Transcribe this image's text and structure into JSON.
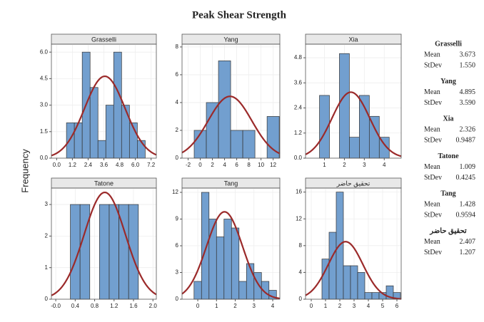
{
  "title": "Peak Shear Strength",
  "y_label": "Frequency",
  "chart_data": [
    {
      "type": "histogram",
      "title": "Grasselli",
      "color": "#729fcf",
      "curve_color": "#9b2a2a",
      "grid": true,
      "bins": [
        0.75,
        1.35,
        1.95,
        2.55,
        3.15,
        3.75,
        4.35,
        4.95,
        5.55,
        6.15,
        6.75
      ],
      "counts": [
        2,
        2,
        6,
        4,
        1,
        3,
        6,
        3,
        2,
        1
      ],
      "xlim": [
        -0.4,
        7.6
      ],
      "ylim": [
        0,
        6.45
      ],
      "xticks": [
        {
          "value": 0,
          "label": "0.0"
        },
        1.2,
        2.4,
        3.6,
        4.8,
        {
          "value": 6,
          "label": "6.0"
        },
        7.2
      ],
      "yticks": [
        {
          "value": 0,
          "label": "0.0"
        },
        1.5,
        {
          "value": 3,
          "label": "3.0"
        },
        4.5,
        {
          "value": 6,
          "label": "6.0"
        }
      ],
      "stats": [
        {
          "label": "Mean",
          "value": 3.673
        },
        {
          "label": "StDev",
          "value": {
            "value": 1.55,
            "label": "1.550"
          }
        }
      ]
    },
    {
      "type": "histogram",
      "title": "Yang",
      "color": "#729fcf",
      "curve_color": "#9b2a2a",
      "grid": true,
      "bins": [
        -1,
        1,
        3,
        5,
        7,
        9,
        11,
        13
      ],
      "counts": [
        2,
        4,
        7,
        2,
        2,
        0,
        3
      ],
      "xlim": [
        -3,
        13.1
      ],
      "ylim": [
        0,
        8.2
      ],
      "xticks": [
        -2,
        0,
        2,
        4,
        6,
        8,
        10,
        12
      ],
      "yticks": [
        0,
        2,
        4,
        6,
        8
      ],
      "stats": [
        {
          "label": "Mean",
          "value": 4.895
        },
        {
          "label": "StDev",
          "value": {
            "value": 3.59,
            "label": "3.590"
          }
        }
      ]
    },
    {
      "type": "histogram",
      "title": "Xia",
      "color": "#729fcf",
      "curve_color": "#9b2a2a",
      "grid": true,
      "bins": [
        0.75,
        1.25,
        1.75,
        2.25,
        2.75,
        3.25,
        3.75,
        4.25
      ],
      "counts": [
        3,
        0,
        5,
        1,
        3,
        2,
        1
      ],
      "xlim": [
        0.05,
        4.85
      ],
      "ylim": [
        0,
        5.45
      ],
      "xticks": [
        1,
        2,
        3,
        4
      ],
      "yticks": [
        {
          "value": 0,
          "label": "0.0"
        },
        1.2,
        2.4,
        3.6,
        4.8
      ],
      "stats": [
        {
          "label": "Mean",
          "value": 2.326
        },
        {
          "label": "StDev",
          "value": 0.9487
        }
      ]
    },
    {
      "type": "histogram",
      "title": "Tatone",
      "color": "#729fcf",
      "curve_color": "#9b2a2a",
      "grid": true,
      "bins": [
        0.3,
        0.5,
        0.7,
        0.9,
        1.1,
        1.3,
        1.5,
        1.7
      ],
      "counts": [
        3,
        3,
        0,
        3,
        3,
        3,
        3
      ],
      "xlim": [
        -0.09,
        2.07
      ],
      "ylim": [
        0,
        3.52
      ],
      "xticks": [
        {
          "value": 0,
          "label": "-0.0"
        },
        0.4,
        0.8,
        1.2,
        1.6,
        {
          "value": 2,
          "label": "2.0"
        }
      ],
      "yticks": [
        0,
        1,
        2,
        3
      ],
      "stats": [
        {
          "label": "Mean",
          "value": 1.009
        },
        {
          "label": "StDev",
          "value": 0.4245
        }
      ]
    },
    {
      "type": "histogram",
      "title": "Tang",
      "color": "#729fcf",
      "curve_color": "#9b2a2a",
      "grid": true,
      "bins": [
        -0.2,
        0.2,
        0.6,
        1.0,
        1.4,
        1.8,
        2.2,
        2.6,
        3.0,
        3.4,
        3.8,
        4.2
      ],
      "counts": [
        2,
        12,
        9,
        7,
        9,
        8,
        2,
        4,
        3,
        2,
        1
      ],
      "xlim": [
        -0.84,
        4.38
      ],
      "ylim": [
        0,
        12.48
      ],
      "xticks": [
        0,
        1,
        2,
        3,
        4
      ],
      "yticks": [
        0,
        3,
        6,
        9,
        12
      ],
      "stats": [
        {
          "label": "Mean",
          "value": 1.428
        },
        {
          "label": "StDev",
          "value": 0.9594
        }
      ]
    },
    {
      "type": "histogram",
      "title": "تحقيق حاضر",
      "color": "#729fcf",
      "curve_color": "#9b2a2a",
      "grid": true,
      "bins": [
        0.75,
        1.25,
        1.75,
        2.25,
        2.75,
        3.25,
        3.75,
        4.25,
        4.75,
        5.25,
        5.75,
        6.25
      ],
      "counts": [
        6,
        10,
        16,
        5,
        5,
        4,
        1,
        1,
        1,
        2,
        1
      ],
      "xlim": [
        -0.4,
        6.3
      ],
      "ylim": [
        0,
        16.6
      ],
      "xticks": [
        0,
        1,
        2,
        3,
        4,
        5,
        6
      ],
      "yticks": [
        0,
        4,
        8,
        12,
        16
      ],
      "stats": [
        {
          "label": "Mean",
          "value": 2.407
        },
        {
          "label": "StDev",
          "value": 1.207
        }
      ]
    }
  ]
}
